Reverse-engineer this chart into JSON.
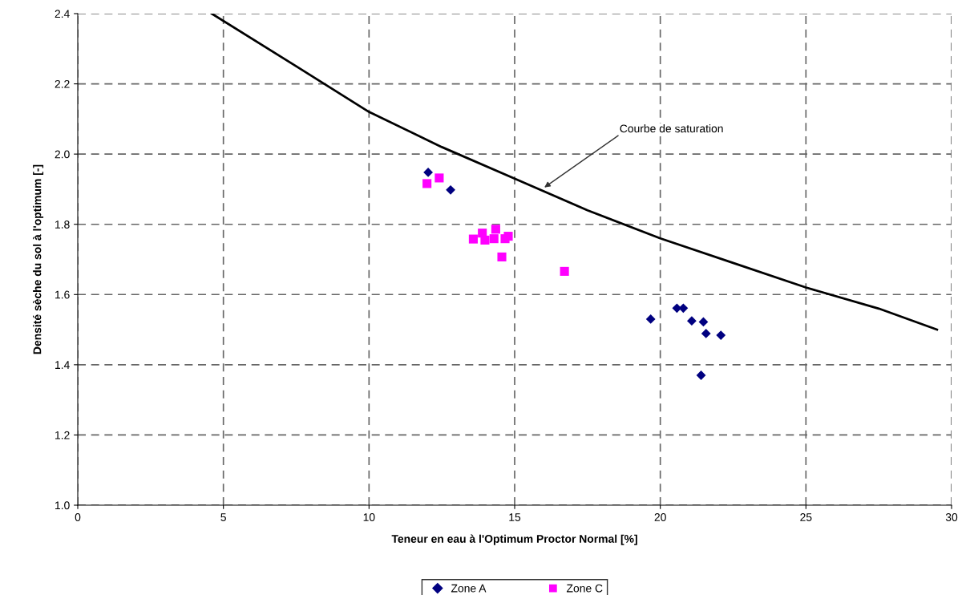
{
  "chart_data": {
    "type": "scatter",
    "xlabel": "Teneur en eau à l'Optimum Proctor Normal [%]",
    "ylabel": "Densité sèche du sol à l'optimum [-]",
    "xlim": [
      0,
      30
    ],
    "xticks": [
      0,
      5,
      10,
      15,
      20,
      25,
      30
    ],
    "ylim": [
      1.0,
      2.4
    ],
    "yticks": [
      {
        "value": 1.0,
        "label": "1.0"
      },
      1.2,
      1.4,
      1.6,
      1.8,
      {
        "value": 2.0,
        "label": "2.0"
      },
      2.2,
      2.4
    ],
    "grid": true,
    "legend": "bottom",
    "series": [
      {
        "name": "Zone A",
        "color": "#000080",
        "marker": "diamond",
        "x": [
          12.03,
          12.8,
          19.67,
          20.57,
          20.79,
          21.08,
          21.48,
          21.57,
          22.08,
          21.4
        ],
        "values": [
          1.948,
          1.898,
          1.53,
          1.561,
          1.561,
          1.525,
          1.522,
          1.489,
          1.484,
          1.37
        ]
      },
      {
        "name": "Zone C",
        "color": "#ff00ff",
        "marker": "square",
        "x": [
          11.99,
          12.41,
          13.58,
          13.89,
          13.98,
          14.29,
          14.35,
          14.67,
          14.78,
          14.56,
          16.71
        ],
        "values": [
          1.916,
          1.932,
          1.758,
          1.775,
          1.755,
          1.759,
          1.786,
          1.759,
          1.766,
          1.707,
          1.666
        ]
      },
      {
        "type": "line",
        "color": "#000000",
        "marker": "none",
        "line_style": "solid",
        "x": [
          4.6,
          7.5,
          10,
          12.5,
          15,
          17.5,
          20,
          22.5,
          25,
          27.5,
          29.5
        ],
        "values": [
          2.4,
          2.25,
          2.12,
          2.02,
          1.93,
          1.84,
          1.76,
          1.69,
          1.62,
          1.56,
          1.5
        ]
      }
    ],
    "annotations": [
      {
        "text": "Courbe de saturation",
        "x": 16.02,
        "y": 1.905
      }
    ]
  }
}
